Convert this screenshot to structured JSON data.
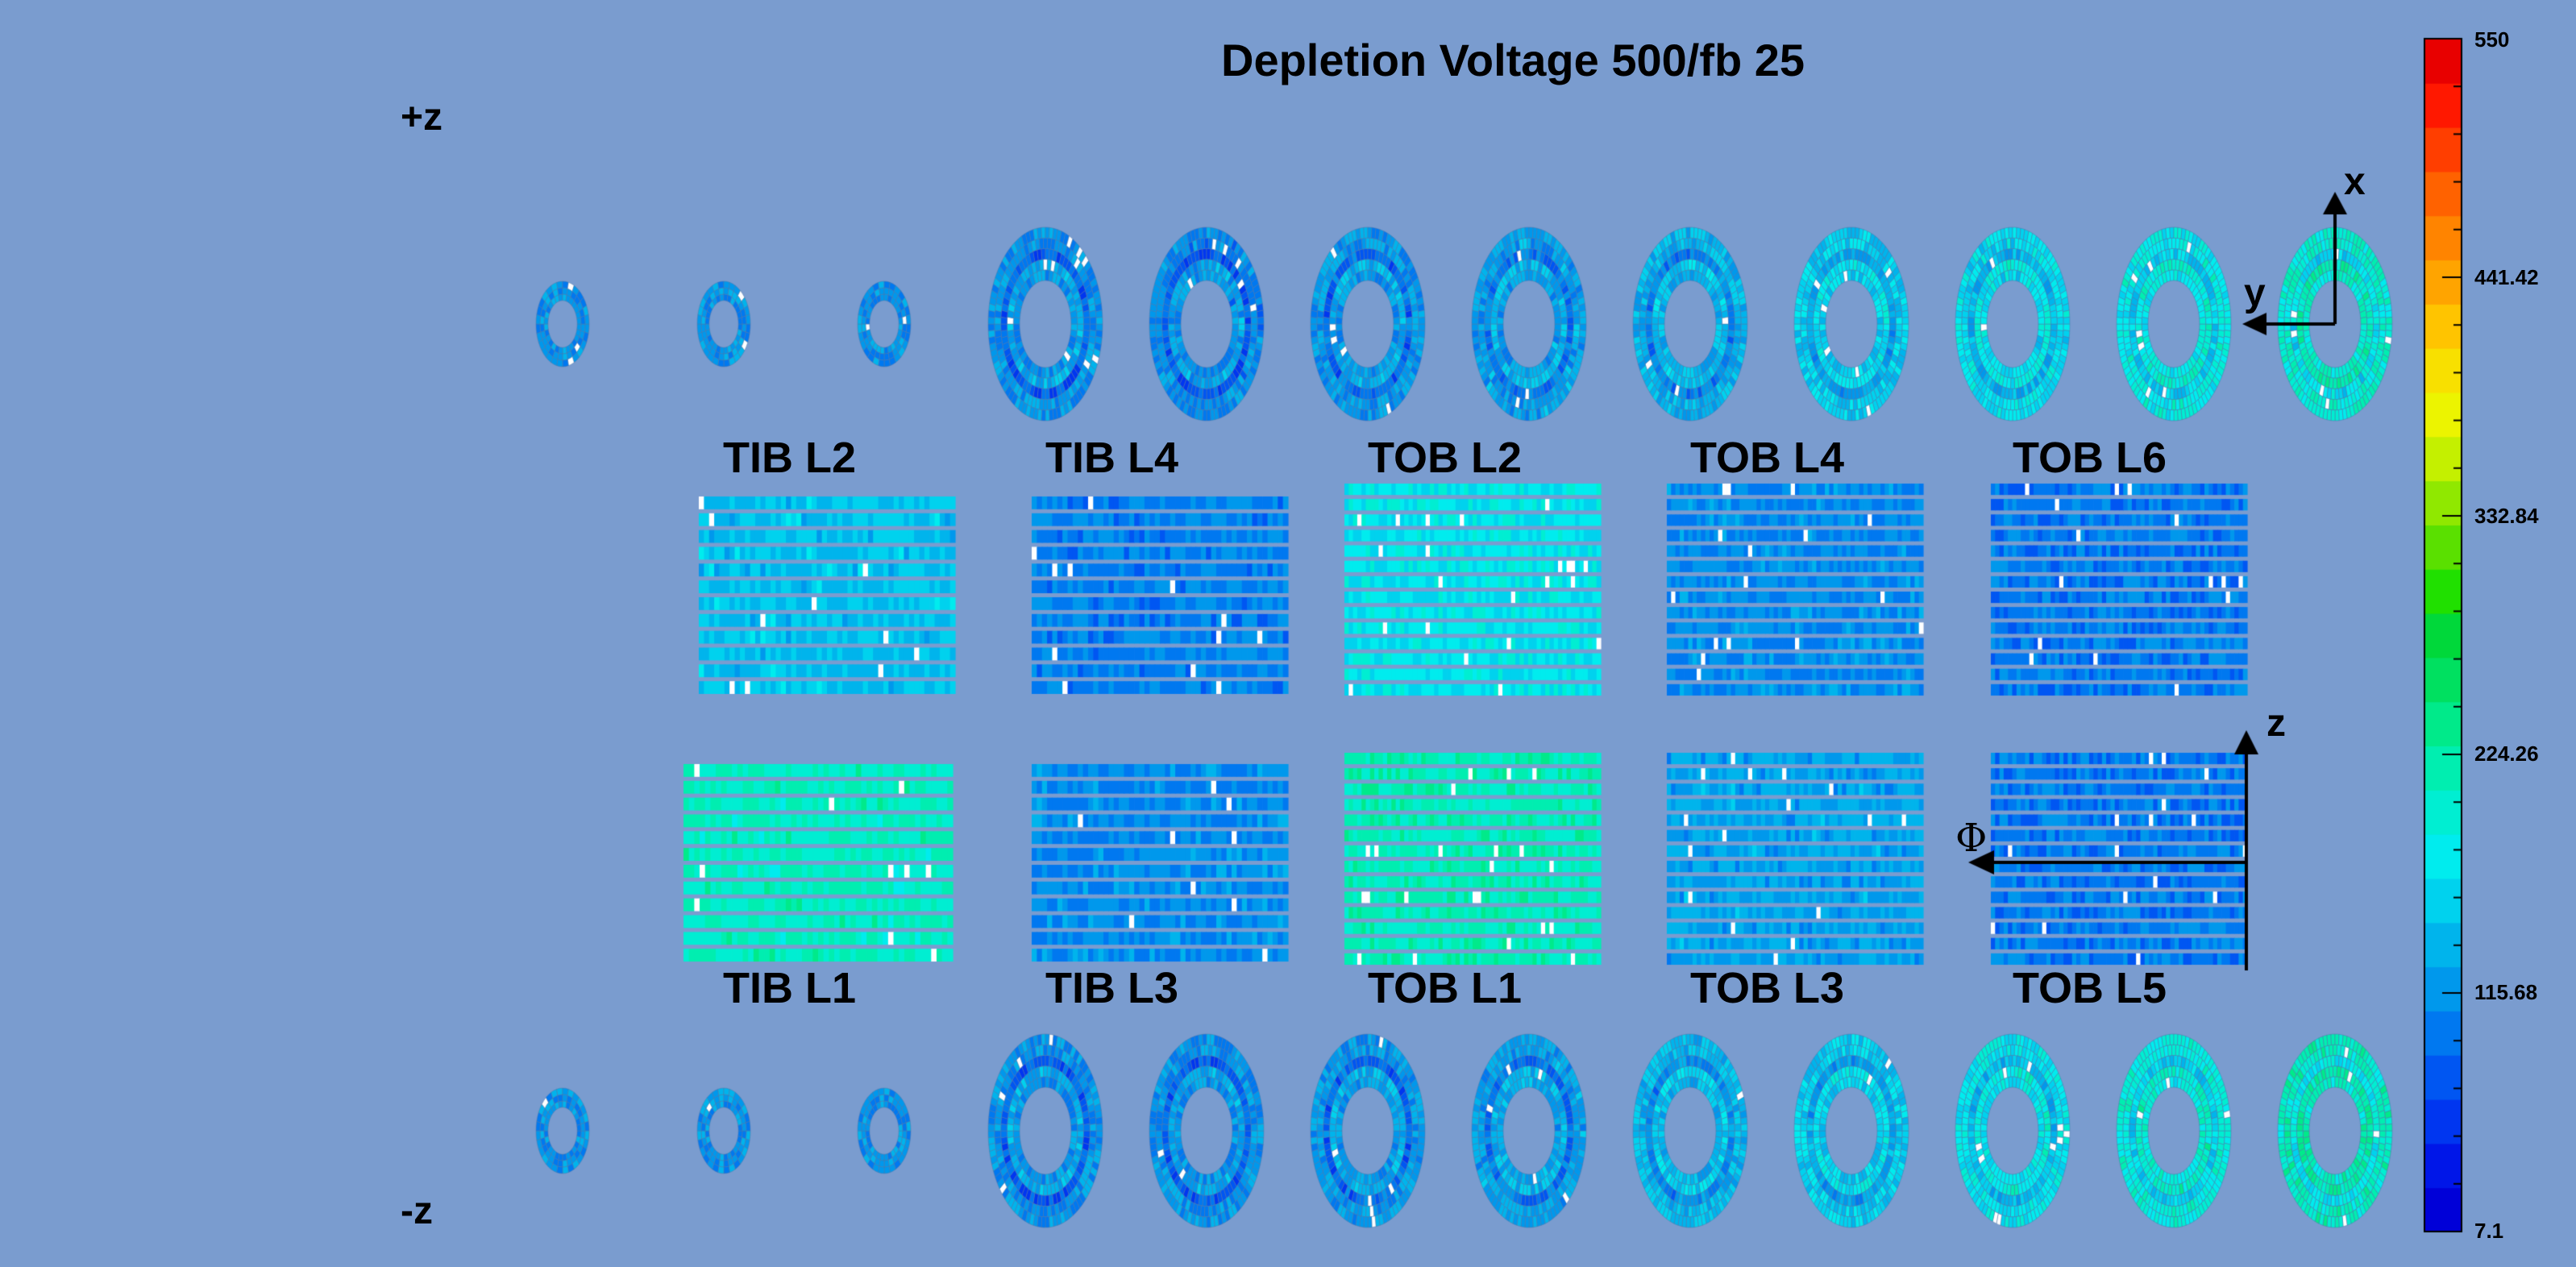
{
  "title": "Depletion Voltage 500/fb 25",
  "z_labels": {
    "plus": "+z",
    "minus": "-z"
  },
  "layers_top": [
    "TIB L2",
    "TIB L4",
    "TOB L2",
    "TOB L4",
    "TOB L6"
  ],
  "layers_bottom": [
    "TIB L1",
    "TIB L3",
    "TOB L1",
    "TOB L3",
    "TOB L5"
  ],
  "axes": {
    "x": "x",
    "y": "y",
    "z": "z",
    "phi": "Φ"
  },
  "colorbar": {
    "min": 7.1,
    "max": 550,
    "ticks": [
      "550",
      "441.42",
      "332.84",
      "224.26",
      "115.68",
      "7.1"
    ],
    "colors": [
      "#0000d8",
      "#0016e8",
      "#0036f0",
      "#0056f2",
      "#0078f0",
      "#0098ec",
      "#00b4ec",
      "#00d2ee",
      "#00ecee",
      "#00eed2",
      "#00eeb0",
      "#00ea8a",
      "#00e060",
      "#00d83a",
      "#20e000",
      "#5ae000",
      "#90e800",
      "#c4f000",
      "#ecf400",
      "#f8e000",
      "#ffc400",
      "#ffa400",
      "#ff8400",
      "#ff6200",
      "#ff3e00",
      "#ff1800",
      "#e80000"
    ]
  },
  "panels_mean_level": {
    "TIB L2": 0.26,
    "TIB L4": 0.18,
    "TOB L2": 0.31,
    "TOB L4": 0.19,
    "TOB L6": 0.17,
    "TIB L1": 0.37,
    "TIB L3": 0.19,
    "TOB L1": 0.38,
    "TOB L3": 0.22,
    "TOB L5": 0.17
  },
  "rings_mean_level_top": [
    0.2,
    0.2,
    0.2,
    0.2,
    0.19,
    0.21,
    0.22,
    0.24,
    0.28,
    0.3,
    0.33,
    0.36
  ],
  "rings_mean_level_bottom": [
    0.2,
    0.2,
    0.2,
    0.2,
    0.2,
    0.21,
    0.22,
    0.25,
    0.28,
    0.31,
    0.34,
    0.37
  ]
}
